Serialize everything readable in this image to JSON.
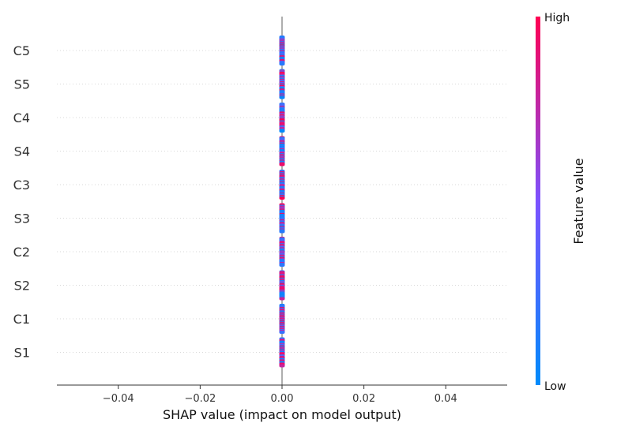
{
  "chart_data": {
    "type": "scatter",
    "subtype": "shap-beeswarm",
    "xlabel": "SHAP value (impact on model output)",
    "xlim": [
      -0.055,
      0.055
    ],
    "x_ticks": [
      -0.04,
      -0.02,
      0.0,
      0.02,
      0.04
    ],
    "x_tick_labels": [
      "−0.04",
      "−0.02",
      "0.00",
      "0.02",
      "0.04"
    ],
    "features": [
      "C5",
      "S5",
      "C4",
      "S4",
      "C3",
      "S3",
      "C2",
      "S2",
      "C1",
      "S1"
    ],
    "shap_values_all_zero": true,
    "colorbar": {
      "title": "Feature value",
      "high_label": "High",
      "low_label": "Low",
      "low_color": "#008bfb",
      "mid_color": "#7c52ff",
      "high_color": "#ff0052"
    },
    "grid": "dotted horizontal row lines",
    "zero_line": true
  }
}
